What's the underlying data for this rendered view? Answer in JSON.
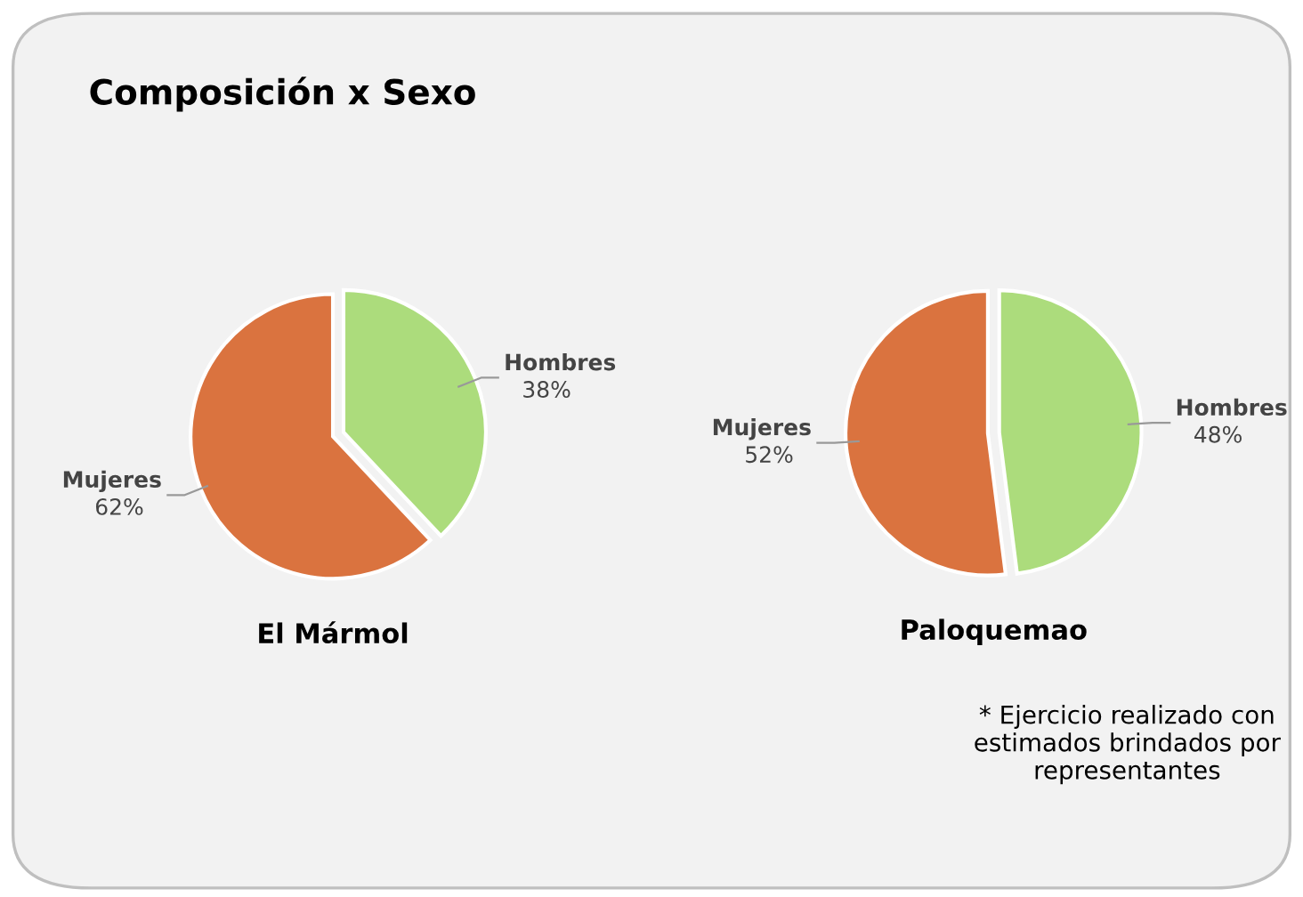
{
  "chart_data": [
    {
      "type": "other",
      "title": "Composición x Sexo",
      "annotations": [
        "* Ejercicio realizado con estimados brindados por representantes"
      ]
    },
    {
      "type": "pie",
      "title": "El Mármol",
      "categories": [
        "Hombres",
        "Mujeres"
      ],
      "values": [
        38,
        62
      ],
      "value_labels": [
        "38%",
        "62%"
      ],
      "colors": [
        "#acdc7c",
        "#da733f"
      ]
    },
    {
      "type": "pie",
      "title": "Paloquemao",
      "categories": [
        "Hombres",
        "Mujeres"
      ],
      "values": [
        48,
        52
      ],
      "value_labels": [
        "48%",
        "52%"
      ],
      "colors": [
        "#acdc7c",
        "#da733f"
      ]
    }
  ]
}
